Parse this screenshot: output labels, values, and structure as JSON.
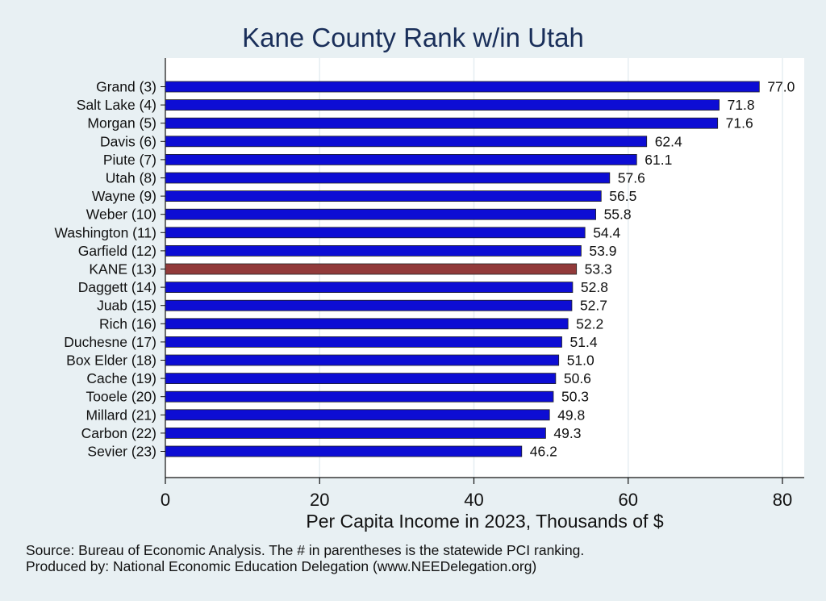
{
  "title": "Kane County Rank w/in Utah",
  "notes": {
    "source": "Source: Bureau of Economic Analysis. The # in parentheses is the statewide PCI ranking.",
    "producer": "Produced by: National Economic Education Delegation (www.NEEDelegation.org)"
  },
  "colors": {
    "bar": "#0d0dd4",
    "highlight": "#923a3a",
    "background": "#e8f0f3",
    "plot_bg": "#ffffff",
    "title": "#1a2f5a"
  },
  "chart_data": {
    "type": "bar",
    "orientation": "horizontal",
    "title": "Kane County Rank w/in Utah",
    "xlabel": "Per Capita Income in 2023, Thousands of $",
    "ylabel": "",
    "xlim": [
      0,
      82.5
    ],
    "xticks": [
      0,
      20,
      40,
      60,
      80
    ],
    "grid": true,
    "categories": [
      "Grand  (3)",
      "Salt Lake  (4)",
      "Morgan  (5)",
      "Davis  (6)",
      "Piute  (7)",
      "Utah  (8)",
      "Wayne  (9)",
      "Weber (10)",
      "Washington (11)",
      "Garfield (12)",
      "KANE (13)",
      "Daggett (14)",
      "Juab (15)",
      "Rich (16)",
      "Duchesne (17)",
      "Box Elder (18)",
      "Cache (19)",
      "Tooele (20)",
      "Millard (21)",
      "Carbon (22)",
      "Sevier (23)"
    ],
    "values": [
      77.0,
      71.8,
      71.6,
      62.4,
      61.1,
      57.6,
      56.5,
      55.8,
      54.4,
      53.9,
      53.3,
      52.8,
      52.7,
      52.2,
      51.4,
      51.0,
      50.6,
      50.3,
      49.8,
      49.3,
      46.2
    ],
    "value_labels": [
      "77.0",
      "71.8",
      "71.6",
      "62.4",
      "61.1",
      "57.6",
      "56.5",
      "55.8",
      "54.4",
      "53.9",
      "53.3",
      "52.8",
      "52.7",
      "52.2",
      "51.4",
      "51.0",
      "50.6",
      "50.3",
      "49.8",
      "49.3",
      "46.2"
    ],
    "highlight": "KANE (13)"
  }
}
